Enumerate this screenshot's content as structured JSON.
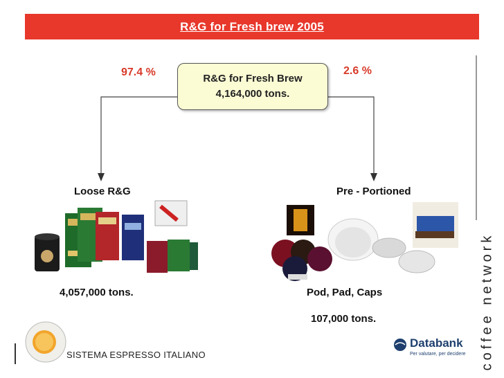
{
  "title": "R&G for Fresh brew 2005",
  "center": {
    "line1": "R&G for Fresh Brew",
    "line2": "4,164,000 tons."
  },
  "left": {
    "percent": "97.4 %",
    "label": "Loose R&G",
    "amount": "4,057,000 tons."
  },
  "right": {
    "percent": "2.6 %",
    "label": "Pre - Portioned",
    "sublabel": "Pod, Pad, Caps",
    "amount": "107,000 tons."
  },
  "branding": {
    "vertical": "coffee network",
    "sei": "SISTEMA ESPRESSO ITALIANO",
    "databank": "Databank",
    "databank_tagline": "Per valutare, per decidere"
  },
  "colors": {
    "title_bar": "#e8372b",
    "percent_text": "#d83a2a",
    "center_box": "#fbfbd4"
  }
}
